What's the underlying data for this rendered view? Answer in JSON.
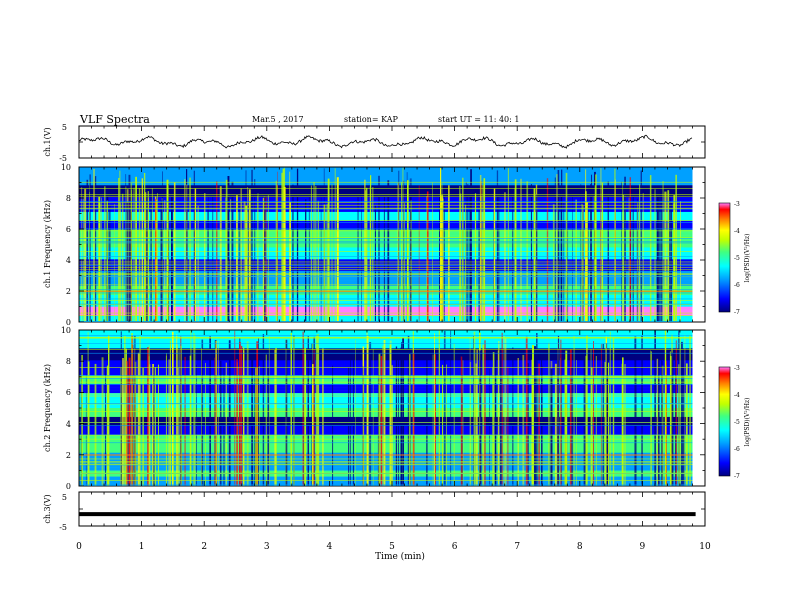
{
  "header": {
    "title": "VLF Spectra",
    "date": "Mar.5  , 2017",
    "station": "station= KAP",
    "start": "start  UT =   11: 40: 1"
  },
  "chart_data": [
    {
      "type": "line",
      "panel": "ch.1 waveform",
      "ylabel": "ch.1(V)",
      "ylim": [
        -5,
        5
      ],
      "yticks": [
        "5",
        "-5"
      ],
      "xlim": [
        0,
        10
      ],
      "note": "noisy waveform oscillating roughly between -1.5 and 1.5 V over ~9.8 min"
    },
    {
      "type": "heatmap",
      "panel": "ch.1 spectrogram",
      "ylabel": "ch.1 Frequency (kHz)",
      "ylim": [
        0,
        10
      ],
      "yticks": [
        "0",
        "2",
        "4",
        "6",
        "8",
        "10"
      ],
      "xlim": [
        0,
        9.85
      ],
      "colorbar": {
        "label": "log(PSD)(V²/Hz)",
        "range": [
          -7,
          -3
        ],
        "ticks": [
          "-3",
          "-4",
          "-5",
          "-6",
          "-7"
        ]
      }
    },
    {
      "type": "heatmap",
      "panel": "ch.2 spectrogram",
      "ylabel": "ch.2 Frequency (kHz)",
      "ylim": [
        0,
        10
      ],
      "yticks": [
        "0",
        "2",
        "4",
        "6",
        "8",
        "10"
      ],
      "xlim": [
        0,
        9.85
      ],
      "colorbar": {
        "label": "log(PSD)(V²/Hz)",
        "range": [
          -7,
          -3
        ],
        "ticks": [
          "-3",
          "-4",
          "-5",
          "-6",
          "-7"
        ]
      }
    },
    {
      "type": "line",
      "panel": "ch.3 waveform",
      "ylabel": "ch.3(V)",
      "ylim": [
        -5,
        5
      ],
      "yticks": [
        "5",
        "-5"
      ],
      "xlim": [
        0,
        10
      ],
      "x": [
        0,
        9.85
      ],
      "values": [
        -1.5,
        -1.5
      ]
    }
  ],
  "xaxis": {
    "label": "Time  (min)",
    "ticks": [
      "0",
      "1",
      "2",
      "3",
      "4",
      "5",
      "6",
      "7",
      "8",
      "9",
      "10"
    ]
  },
  "colors": {
    "line": "#000000",
    "colormap": [
      "#00007f",
      "#0000ff",
      "#00a0ff",
      "#00ffff",
      "#40ff80",
      "#c0ff00",
      "#ffff00",
      "#ff8000",
      "#ff0000",
      "#ff80ff"
    ]
  }
}
